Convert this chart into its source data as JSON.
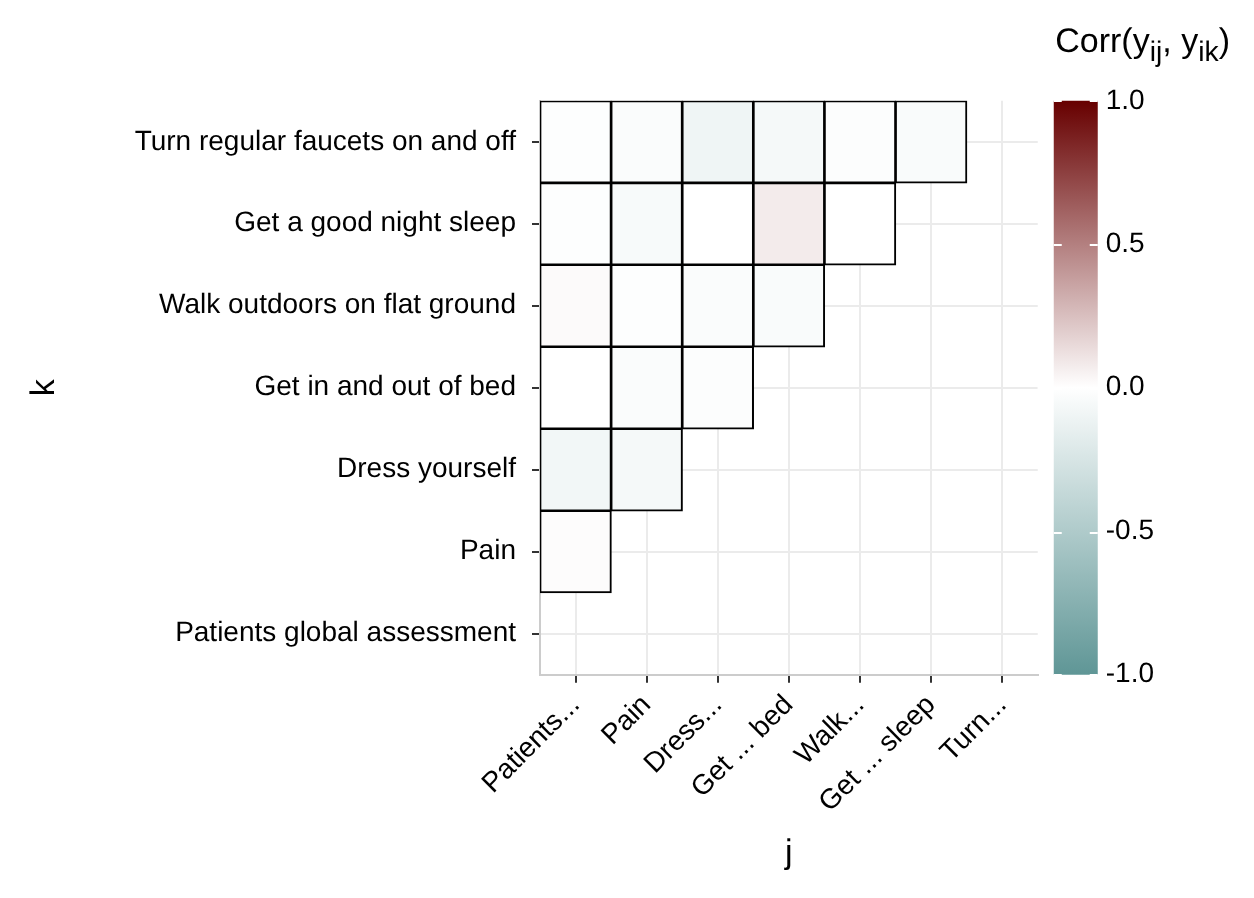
{
  "chart_data": {
    "type": "heatmap",
    "xlabel": "j",
    "ylabel": "k",
    "clabel": "Corr(y$_{ij}$, y$_{ik}$)",
    "categories": [
      "Patients...",
      "Pain",
      "Dress...",
      "Get ... bed",
      "Walk...",
      "Get ... sleep",
      "Turn..."
    ],
    "y_categories": [
      "Turn regular faucets on and off",
      "Get a good night sleep",
      "Walk outdoors on flat ground",
      "Get in and out of bed",
      "Dress yourself",
      "Pain",
      "Patients global assessment"
    ],
    "cells": [
      [
        -0.01,
        -0.03,
        -0.1,
        -0.06,
        -0.02,
        -0.04,
        null
      ],
      [
        -0.01,
        -0.05,
        0.0,
        0.08,
        0.0,
        null,
        null
      ],
      [
        0.02,
        -0.01,
        -0.03,
        -0.04,
        null,
        null,
        null
      ],
      [
        0.0,
        -0.03,
        -0.02,
        null,
        null,
        null,
        null
      ],
      [
        -0.08,
        -0.06,
        null,
        null,
        null,
        null,
        null
      ],
      [
        0.01,
        null,
        null,
        null,
        null,
        null,
        null
      ],
      [
        null,
        null,
        null,
        null,
        null,
        null,
        null
      ]
    ],
    "clim": [
      -1,
      1
    ],
    "cticks": [
      {
        "value": 1,
        "label": "1.0"
      },
      {
        "value": 0.5,
        "label": "0.5"
      },
      {
        "value": 0,
        "label": "0.0"
      },
      {
        "value": -0.5,
        "label": "-0.5"
      },
      {
        "value": -1,
        "label": "-1.0"
      }
    ],
    "grid": true
  }
}
